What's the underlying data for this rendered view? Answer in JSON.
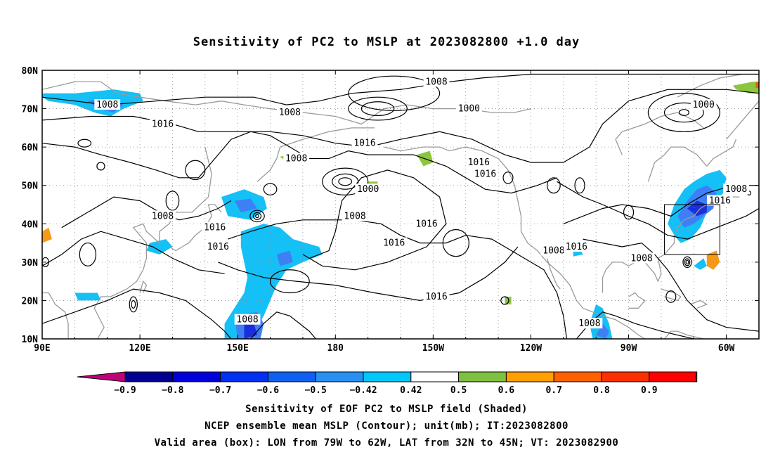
{
  "title": "Sensitivity of PC2 to MSLP at 2023082800 +1.0 day",
  "map": {
    "lat_ticks": [
      "10N",
      "20N",
      "30N",
      "40N",
      "50N",
      "60N",
      "70N",
      "80N"
    ],
    "lon_ticks": [
      "90E",
      "120E",
      "150E",
      "180",
      "150W",
      "120W",
      "90W",
      "60W"
    ],
    "contour_labels": [
      {
        "text": "1008",
        "lon": 110,
        "lat": 71
      },
      {
        "text": "1008",
        "lon": 166,
        "lat": 69
      },
      {
        "text": "1016",
        "lon": 127,
        "lat": 66
      },
      {
        "text": "1008",
        "lon": -149,
        "lat": 77
      },
      {
        "text": "1000",
        "lon": -139,
        "lat": 70
      },
      {
        "text": "1000",
        "lon": -67,
        "lat": 71
      },
      {
        "text": "1016",
        "lon": -171,
        "lat": 61
      },
      {
        "text": "1008",
        "lon": 168,
        "lat": 57
      },
      {
        "text": "1016",
        "lon": -136,
        "lat": 56
      },
      {
        "text": "1016",
        "lon": -134,
        "lat": 53
      },
      {
        "text": "1000",
        "lon": -170,
        "lat": 49
      },
      {
        "text": "1008",
        "lon": -174,
        "lat": 42
      },
      {
        "text": "1008",
        "lon": 127,
        "lat": 42
      },
      {
        "text": "1016",
        "lon": 143,
        "lat": 39
      },
      {
        "text": "1016",
        "lon": -152,
        "lat": 40
      },
      {
        "text": "1016",
        "lon": -162,
        "lat": 35
      },
      {
        "text": "1016",
        "lon": 144,
        "lat": 34
      },
      {
        "text": "1008",
        "lon": -113,
        "lat": 33
      },
      {
        "text": "1016",
        "lon": -106,
        "lat": 34
      },
      {
        "text": "1008",
        "lon": -86,
        "lat": 31
      },
      {
        "text": "1016",
        "lon": -149,
        "lat": 21
      },
      {
        "text": "1008",
        "lon": 153,
        "lat": 15
      },
      {
        "text": "1008",
        "lon": -102,
        "lat": 14
      },
      {
        "text": "1008",
        "lon": -57,
        "lat": 49
      },
      {
        "text": "1016",
        "lon": -62,
        "lat": 46
      }
    ],
    "valid_box": {
      "lon_w": -79,
      "lon_e": -62,
      "lat_s": 32,
      "lat_n": 45
    },
    "shade_colors": {
      "neg_strong": "#1a2fdc",
      "neg": "#3e7ff5",
      "neg_light": "#14c0f5",
      "pos_green": "#8cc63e",
      "pos_orange": "#f59a18",
      "pos_dark": "#e06410"
    }
  },
  "colorbar": {
    "tick_labels": [
      "−0.9",
      "−0.8",
      "−0.7",
      "−0.6",
      "−0.5",
      "−0.42",
      "0.42",
      "0.5",
      "0.6",
      "0.7",
      "0.8",
      "0.9"
    ],
    "colors": [
      "#000090",
      "#0000d8",
      "#0030f0",
      "#1060f0",
      "#2890f0",
      "#00c8f8",
      "#ffffff",
      "#80c040",
      "#ffa000",
      "#ff6000",
      "#ff3000",
      "#ff0000"
    ],
    "left_arrow_color": "#c0007a",
    "right_arrow_color": "#f4a0c8"
  },
  "captions": {
    "line1": "Sensitivity of EOF PC2 to MSLP field (Shaded)",
    "line2": "NCEP ensemble mean MSLP (Contour); unit(mb); IT:2023082800",
    "line3": "Valid area (box): LON from 79W to 62W, LAT from 32N to 45N; VT: 2023082900"
  }
}
